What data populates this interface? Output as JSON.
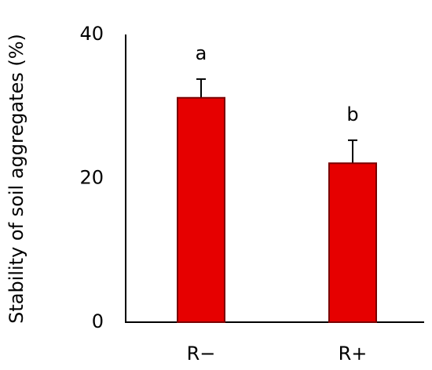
{
  "chart_data": {
    "type": "bar",
    "y_label": "Stability of soil aggregates (%)",
    "categories": [
      "R−",
      "R+"
    ],
    "values": [
      31.2,
      22.1
    ],
    "errors": [
      2.6,
      3.2
    ],
    "letters": [
      "a",
      "b"
    ],
    "color": "#e60000",
    "edge_color": "#7a0000",
    "ylim": [
      0,
      40
    ],
    "yticks": [
      0,
      20,
      40
    ],
    "grid": false
  }
}
